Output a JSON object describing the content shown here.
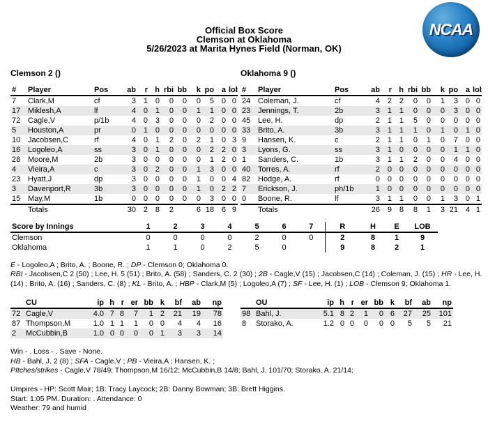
{
  "colors": {
    "stripe": "#e8e8e8",
    "logo_blue": "#1467ac",
    "logo_shadow": "#14386b",
    "text": "#000000"
  },
  "header": {
    "title": "Official Box Score",
    "matchup": "Clemson at Oklahoma",
    "game_info": "5/26/2023 at Marita Hynes Field (Norman, OK)",
    "logo_text": "NCAA"
  },
  "batting": {
    "columns": [
      "#",
      "Player",
      "Pos",
      "ab",
      "r",
      "h",
      "rbi",
      "bb",
      "k",
      "po",
      "a",
      "lob"
    ],
    "teams": [
      {
        "heading": "Clemson 2 ()",
        "rows": [
          [
            "7",
            "Clark,M",
            "cf",
            "3",
            "1",
            "0",
            "0",
            "0",
            "0",
            "5",
            "0",
            "0"
          ],
          [
            "17",
            "Miklesh,A",
            "lf",
            "4",
            "0",
            "1",
            "0",
            "0",
            "1",
            "1",
            "0",
            "0"
          ],
          [
            "72",
            "Cagle,V",
            "p/1b",
            "4",
            "0",
            "3",
            "0",
            "0",
            "0",
            "2",
            "0",
            "0"
          ],
          [
            "5",
            "Houston,A",
            "pr",
            "0",
            "1",
            "0",
            "0",
            "0",
            "0",
            "0",
            "0",
            "0"
          ],
          [
            "10",
            "Jacobsen,C",
            "rf",
            "4",
            "0",
            "1",
            "2",
            "0",
            "2",
            "1",
            "0",
            "3"
          ],
          [
            "16",
            "Logoleo,A",
            "ss",
            "3",
            "0",
            "1",
            "0",
            "0",
            "0",
            "2",
            "2",
            "0"
          ],
          [
            "28",
            "Moore,M",
            "2b",
            "3",
            "0",
            "0",
            "0",
            "0",
            "0",
            "1",
            "2",
            "0"
          ],
          [
            "4",
            "Vieira,A",
            "c",
            "3",
            "0",
            "2",
            "0",
            "0",
            "1",
            "3",
            "0",
            "0"
          ],
          [
            "23",
            "Hyatt,J",
            "dp",
            "3",
            "0",
            "0",
            "0",
            "0",
            "1",
            "0",
            "0",
            "4"
          ],
          [
            "3",
            "Davenport,R",
            "3b",
            "3",
            "0",
            "0",
            "0",
            "0",
            "1",
            "0",
            "2",
            "2"
          ],
          [
            "15",
            "May,M",
            "1b",
            "0",
            "0",
            "0",
            "0",
            "0",
            "0",
            "3",
            "0",
            "0"
          ]
        ],
        "totals": [
          "",
          "Totals",
          "",
          "30",
          "2",
          "8",
          "2",
          "",
          "6",
          "18",
          "6",
          "9"
        ]
      },
      {
        "heading": "Oklahoma 9 ()",
        "rows": [
          [
            "24",
            "Coleman, J.",
            "cf",
            "4",
            "2",
            "2",
            "0",
            "0",
            "1",
            "3",
            "0",
            "0"
          ],
          [
            "23",
            "Jennings, T.",
            "2b",
            "3",
            "1",
            "1",
            "0",
            "0",
            "0",
            "3",
            "0",
            "0"
          ],
          [
            "45",
            "Lee, H.",
            "dp",
            "2",
            "1",
            "1",
            "5",
            "0",
            "0",
            "0",
            "0",
            "0"
          ],
          [
            "33",
            "Brito, A.",
            "3b",
            "3",
            "1",
            "1",
            "1",
            "0",
            "1",
            "0",
            "1",
            "0"
          ],
          [
            "9",
            "Hansen, K.",
            "c",
            "2",
            "1",
            "1",
            "0",
            "1",
            "0",
            "7",
            "0",
            "0"
          ],
          [
            "3",
            "Lyons, G.",
            "ss",
            "3",
            "1",
            "0",
            "0",
            "0",
            "0",
            "1",
            "1",
            "0"
          ],
          [
            "1",
            "Sanders, C.",
            "1b",
            "3",
            "1",
            "1",
            "2",
            "0",
            "0",
            "4",
            "0",
            "0"
          ],
          [
            "40",
            "Torres, A.",
            "rf",
            "2",
            "0",
            "0",
            "0",
            "0",
            "0",
            "0",
            "0",
            "0"
          ],
          [
            "82",
            "Hodge, A.",
            "rf",
            "0",
            "0",
            "0",
            "0",
            "0",
            "0",
            "0",
            "0",
            "0"
          ],
          [
            "7",
            "Erickson, J.",
            "ph/1b",
            "1",
            "0",
            "0",
            "0",
            "0",
            "0",
            "0",
            "0",
            "0"
          ],
          [
            "0",
            "Boone, R.",
            "lf",
            "3",
            "1",
            "1",
            "0",
            "0",
            "1",
            "3",
            "0",
            "1"
          ]
        ],
        "totals": [
          "",
          "Totals",
          "",
          "26",
          "9",
          "8",
          "8",
          "1",
          "3",
          "21",
          "4",
          "1"
        ]
      }
    ]
  },
  "innings": {
    "label": "Score by Innings",
    "inning_columns": [
      "1",
      "2",
      "3",
      "4",
      "5",
      "6",
      "7"
    ],
    "summary_columns": [
      "R",
      "H",
      "E",
      "LOB"
    ],
    "rows": [
      {
        "team": "Clemson",
        "innings": [
          "0",
          "0",
          "0",
          "0",
          "2",
          "0",
          "0"
        ],
        "summary": [
          "2",
          "8",
          "1",
          "9"
        ]
      },
      {
        "team": "Oklahoma",
        "innings": [
          "1",
          "1",
          "0",
          "2",
          "5",
          "0",
          ""
        ],
        "summary": [
          "9",
          "8",
          "2",
          "1"
        ]
      }
    ]
  },
  "notes": [
    [
      {
        "i": true,
        "t": "E"
      },
      {
        "t": " - Logoleo,A ; Brito, A. ; Boone, R. ; "
      },
      {
        "i": true,
        "t": "DP"
      },
      {
        "t": " - Clemson 0; Oklahoma 0."
      }
    ],
    [
      {
        "i": true,
        "t": "RBI"
      },
      {
        "t": " - Jacobsen,C 2 (50) ; Lee, H. 5 (51) ; Brito, A. (58) ; Sanders, C. 2 (30) ; "
      },
      {
        "i": true,
        "t": "2B"
      },
      {
        "t": " - Cagle,V (15) ; Jacobsen,C (14) ; Coleman, J. (15) ; "
      },
      {
        "i": true,
        "t": "HR"
      },
      {
        "t": " - Lee, H."
      }
    ],
    [
      {
        "t": "(14) ; Brito, A. (16) ; Sanders, C. (8) ; "
      },
      {
        "i": true,
        "t": "KL"
      },
      {
        "t": " - Brito, A. ; "
      },
      {
        "i": true,
        "t": "HBP"
      },
      {
        "t": " - Clark,M (5) ; Logoleo,A (7) ; "
      },
      {
        "i": true,
        "t": "SF"
      },
      {
        "t": " - Lee, H. (1) ; "
      },
      {
        "i": true,
        "t": "LOB"
      },
      {
        "t": " - Clemson 9; Oklahoma 1."
      }
    ]
  ],
  "pitching": {
    "columns": [
      "ip",
      "h",
      "r",
      "er",
      "bb",
      "k",
      "bf",
      "ab",
      "np"
    ],
    "teams": [
      {
        "label": "CU",
        "rows": [
          [
            "72",
            "Cagle,V",
            "4.0",
            "7",
            "8",
            "7",
            "1",
            "2",
            "21",
            "19",
            "78"
          ],
          [
            "87",
            "Thompson,M",
            "1.0",
            "1",
            "1",
            "1",
            "0",
            "0",
            "4",
            "4",
            "16"
          ],
          [
            "2",
            "McCubbin,B",
            "1.0",
            "0",
            "0",
            "0",
            "0",
            "1",
            "3",
            "3",
            "14"
          ]
        ]
      },
      {
        "label": "OU",
        "rows": [
          [
            "98",
            "Bahl, J.",
            "5.1",
            "8",
            "2",
            "1",
            "0",
            "6",
            "27",
            "25",
            "101"
          ],
          [
            "8",
            "Storako, A.",
            "1.2",
            "0",
            "0",
            "0",
            "0",
            "0",
            "5",
            "5",
            "21"
          ]
        ]
      }
    ]
  },
  "pitch_notes": [
    [
      {
        "t": "Win - . Loss - . Save - None."
      }
    ],
    [
      {
        "i": true,
        "t": "HB"
      },
      {
        "t": " - Bahl, J. 2 (8) ; "
      },
      {
        "i": true,
        "t": "SFA"
      },
      {
        "t": " - Cagle,V ; "
      },
      {
        "i": true,
        "t": "PB"
      },
      {
        "t": " - Vieira,A ; Hansen, K. ;"
      }
    ],
    [
      {
        "i": true,
        "t": "PItches/strikes"
      },
      {
        "t": " - Cagle,V 78/49; Thompson,M 16/12; McCubbin,B 14/8; Bahl, J. 101/70; Storako, A. 21/14;"
      }
    ]
  ],
  "footer": {
    "umpires": "Umpires - HP: Scott Mair; 1B: Tracy Laycock; 2B: Danny Bowman; 3B: Brett Higgins.",
    "start": "Start: 1:05 PM. Duration: . Attendance: 0",
    "weather": "Weather: 79 and humid"
  }
}
